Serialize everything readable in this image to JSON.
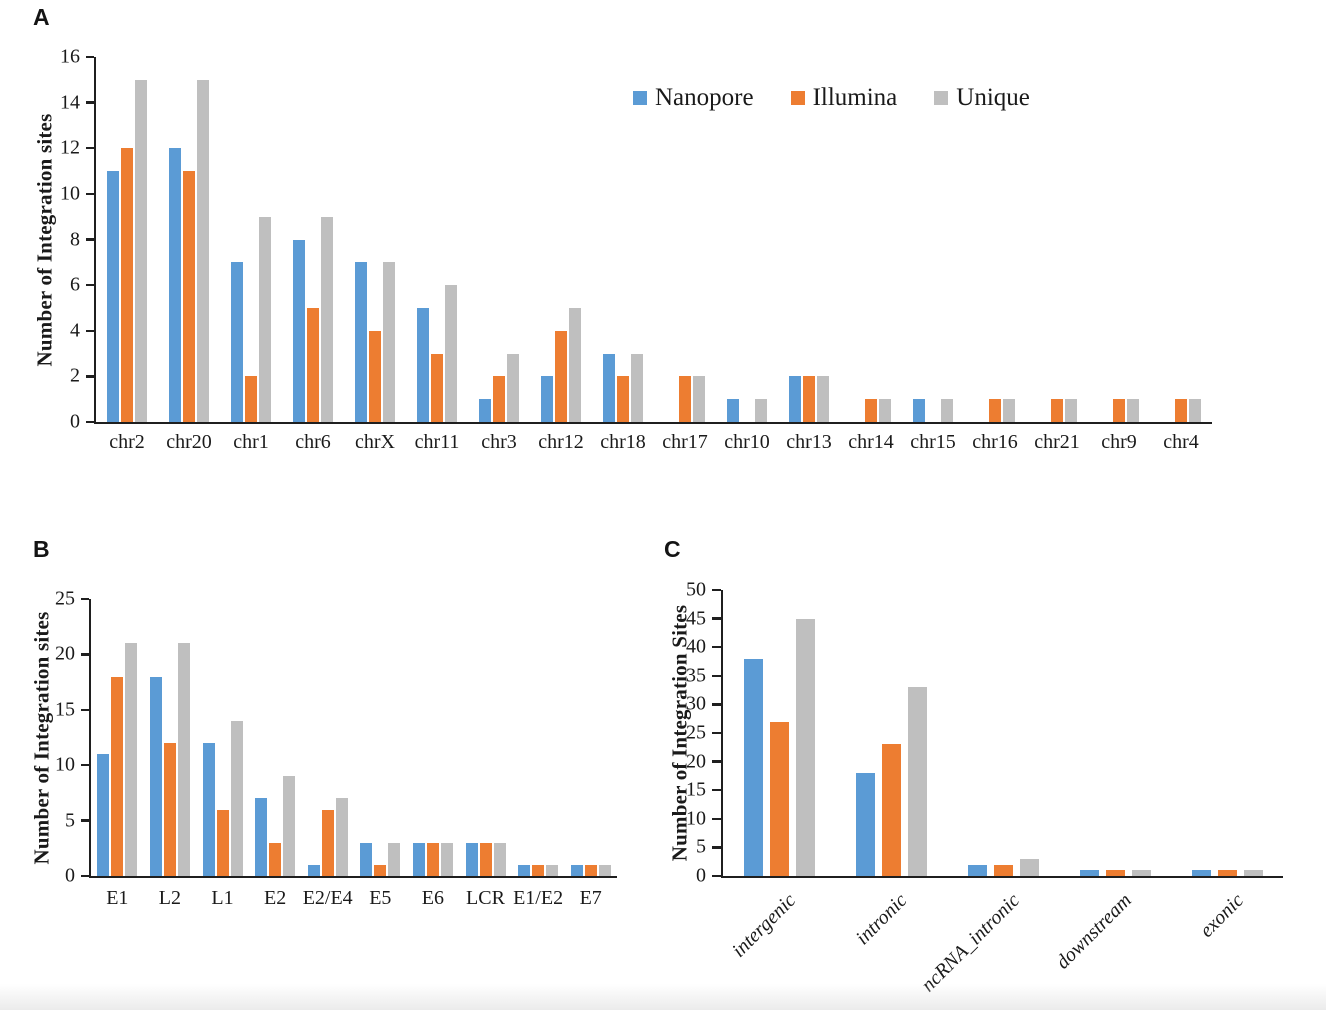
{
  "panels": {
    "a_label": "A",
    "b_label": "B",
    "c_label": "C"
  },
  "colors": {
    "nanopore_blue": "#5B9BD5",
    "illumina_orange": "#ED7D31",
    "unique_gray": "#BFBFBF",
    "axis": "#1f1f1f",
    "text": "#1a1a1a"
  },
  "legend": {
    "items": [
      "Nanopore",
      "Illumina",
      "Unique"
    ]
  },
  "chart_data": [
    {
      "id": "A",
      "type": "bar",
      "title": "",
      "xlabel": "",
      "ylabel": "Number of Integration sites",
      "ylim": [
        0,
        16
      ],
      "ytick_step": 2,
      "grid": false,
      "legend_position": "top-right-inside",
      "categories": [
        "chr2",
        "chr20",
        "chr1",
        "chr6",
        "chrX",
        "chr11",
        "chr3",
        "chr12",
        "chr18",
        "chr17",
        "chr10",
        "chr13",
        "chr14",
        "chr15",
        "chr16",
        "chr21",
        "chr9",
        "chr4"
      ],
      "series": [
        {
          "name": "Nanopore",
          "color": "#5B9BD5",
          "values": [
            11,
            12,
            7,
            8,
            7,
            5,
            1,
            2,
            3,
            0,
            1,
            2,
            0,
            1,
            0,
            0,
            0,
            0
          ]
        },
        {
          "name": "Illumina",
          "color": "#ED7D31",
          "values": [
            12,
            11,
            2,
            5,
            4,
            3,
            2,
            4,
            2,
            2,
            0,
            2,
            1,
            0,
            1,
            1,
            1,
            1
          ]
        },
        {
          "name": "Unique",
          "color": "#BFBFBF",
          "values": [
            15,
            15,
            9,
            9,
            7,
            6,
            3,
            5,
            3,
            2,
            1,
            2,
            1,
            1,
            1,
            1,
            1,
            1
          ]
        }
      ]
    },
    {
      "id": "B",
      "type": "bar",
      "title": "",
      "xlabel": "",
      "ylabel": "Number of Integration sites",
      "ylim": [
        0,
        25
      ],
      "ytick_step": 5,
      "grid": false,
      "legend_position": "none",
      "categories": [
        "E1",
        "L2",
        "L1",
        "E2",
        "E2/E4",
        "E5",
        "E6",
        "LCR",
        "E1/E2",
        "E7"
      ],
      "series": [
        {
          "name": "Nanopore",
          "color": "#5B9BD5",
          "values": [
            11,
            18,
            12,
            7,
            1,
            3,
            3,
            3,
            1,
            1
          ]
        },
        {
          "name": "Illumina",
          "color": "#ED7D31",
          "values": [
            18,
            12,
            6,
            3,
            6,
            1,
            3,
            3,
            1,
            1
          ]
        },
        {
          "name": "Unique",
          "color": "#BFBFBF",
          "values": [
            21,
            21,
            14,
            9,
            7,
            3,
            3,
            3,
            1,
            1
          ]
        }
      ]
    },
    {
      "id": "C",
      "type": "bar",
      "title": "",
      "xlabel": "",
      "ylabel": "Number of Integration Sites",
      "ylim": [
        0,
        50
      ],
      "ytick_step": 5,
      "grid": false,
      "legend_position": "none",
      "x_labels_rotated_italic": true,
      "categories": [
        "intergenic",
        "intronic",
        "ncRNA_intronic",
        "downstream",
        "exonic"
      ],
      "series": [
        {
          "name": "Nanopore",
          "color": "#5B9BD5",
          "values": [
            38,
            18,
            2,
            1,
            1
          ]
        },
        {
          "name": "Illumina",
          "color": "#ED7D31",
          "values": [
            27,
            23,
            2,
            1,
            1
          ]
        },
        {
          "name": "Unique",
          "color": "#BFBFBF",
          "values": [
            45,
            33,
            3,
            1,
            1
          ]
        }
      ]
    }
  ]
}
